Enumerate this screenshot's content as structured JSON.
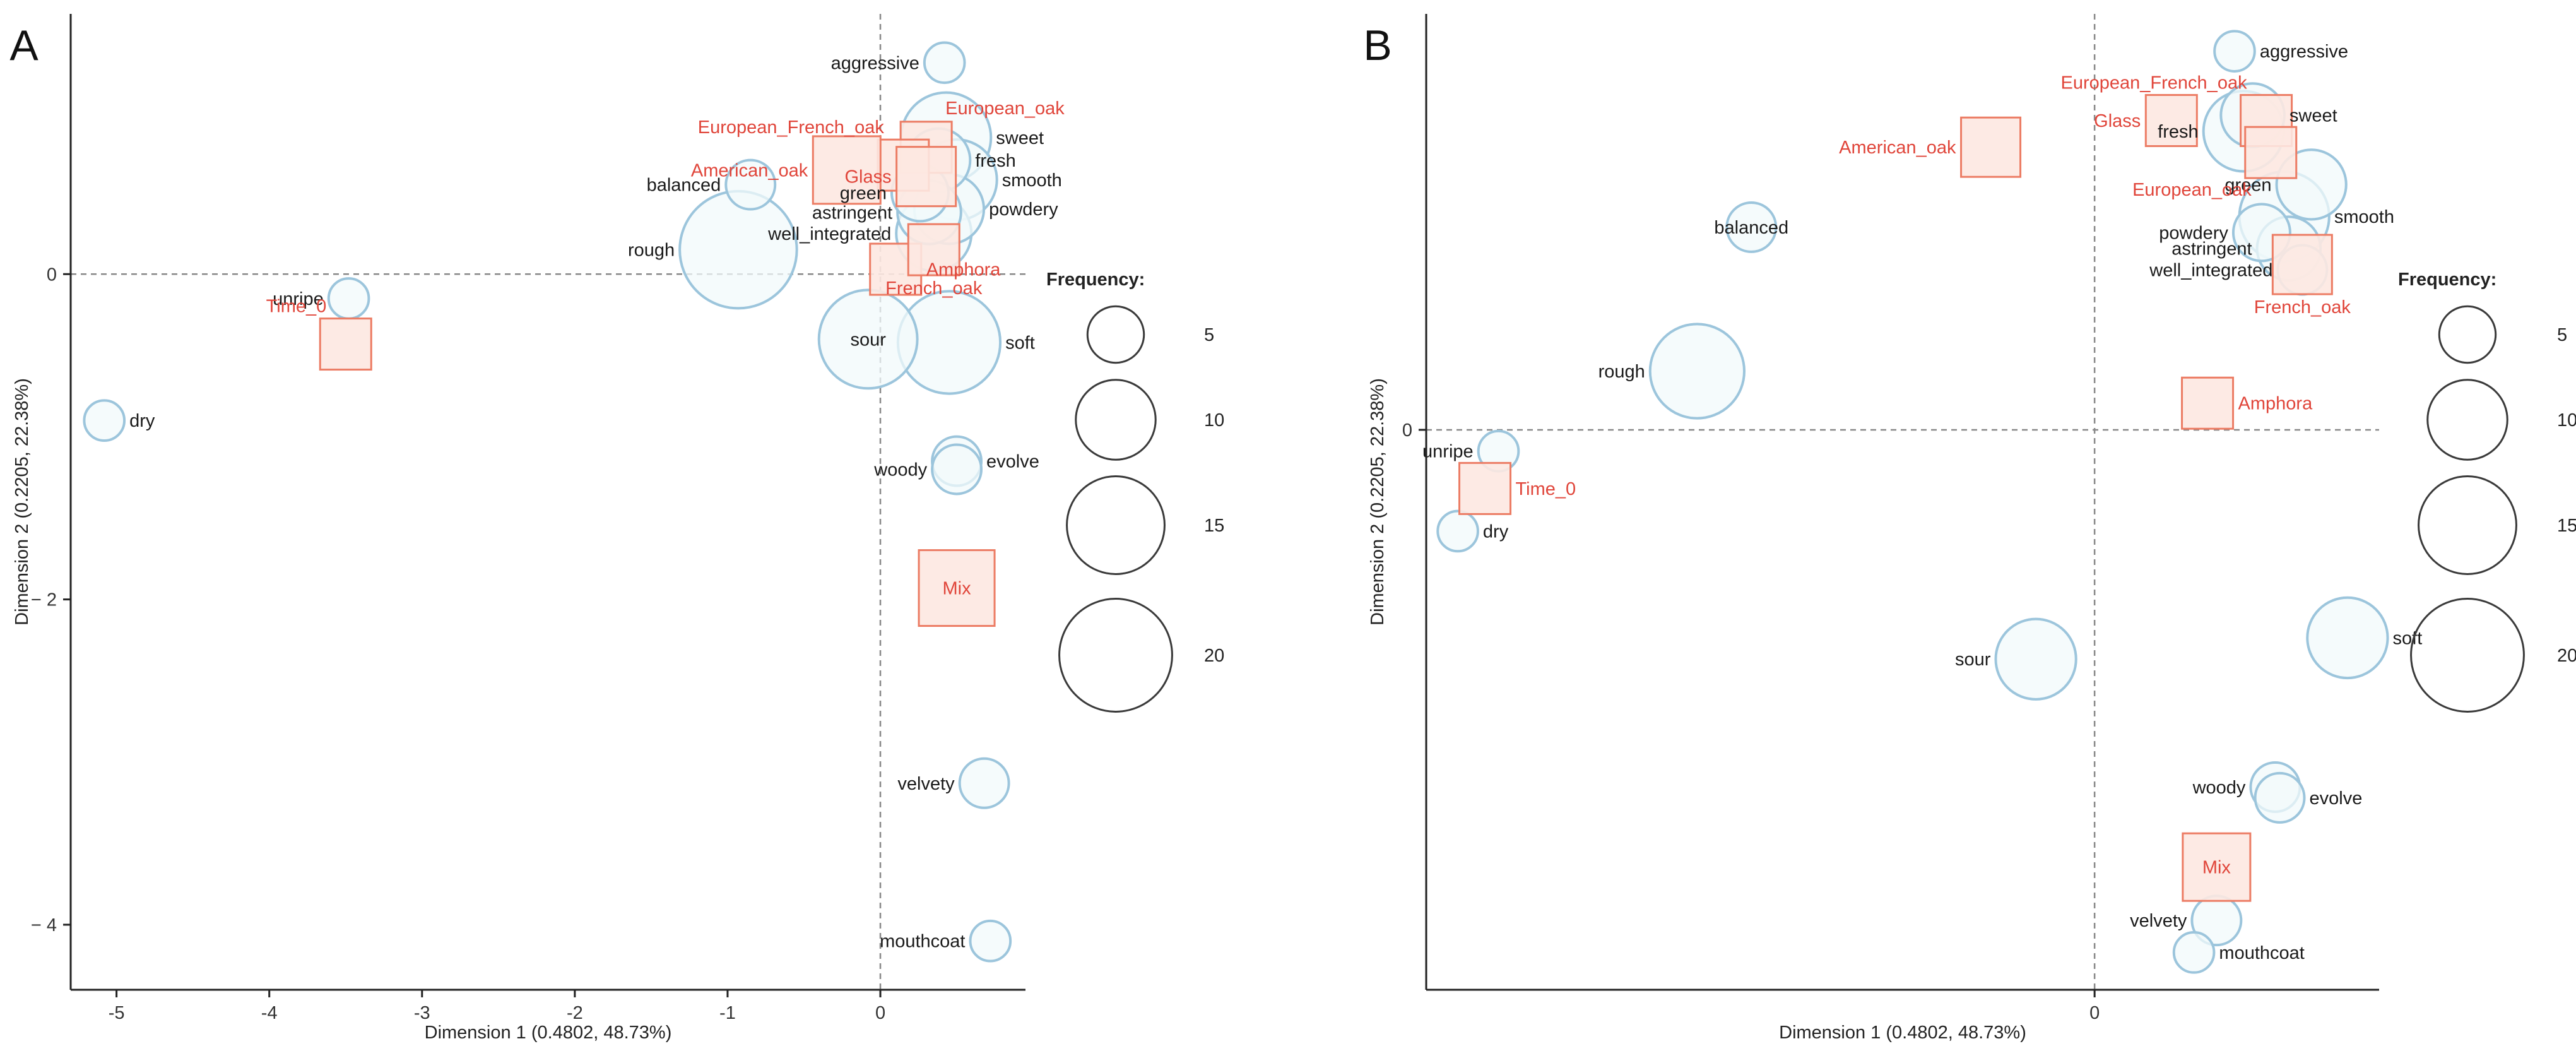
{
  "chart_data": [
    {
      "panel_label": "A",
      "type": "scatter",
      "xlabel": "Dimension 1  (0.4802,  48.73%)",
      "ylabel": "Dimension 2  (0.2205,  22.38%)",
      "xlim": [
        -5.3,
        0.95
      ],
      "ylim": [
        -4.4,
        1.6
      ],
      "x_ticks": [
        -5,
        -4,
        -3,
        -2,
        -1,
        0
      ],
      "x_tick_labels": [
        "-5",
        "-4",
        "-3",
        "-2",
        "-1",
        "0"
      ],
      "y_ticks": [
        0,
        -2,
        -4
      ],
      "y_tick_labels": [
        "0",
        "− 2",
        "− 4"
      ],
      "ref_lines": {
        "x": 0,
        "y": 0
      },
      "attributes": [
        {
          "name": "aggressive",
          "x": 0.42,
          "y": 1.3,
          "freq": 2,
          "label_pos": "left"
        },
        {
          "name": "sweet",
          "x": 0.43,
          "y": 0.84,
          "freq": 10,
          "label_pos": "right"
        },
        {
          "name": "fresh",
          "x": 0.38,
          "y": 0.7,
          "freq": 5,
          "label_pos": "right"
        },
        {
          "name": "smooth",
          "x": 0.5,
          "y": 0.58,
          "freq": 8,
          "label_pos": "right"
        },
        {
          "name": "green",
          "x": 0.26,
          "y": 0.5,
          "freq": 4,
          "label_pos": "left"
        },
        {
          "name": "powdery",
          "x": 0.45,
          "y": 0.4,
          "freq": 6,
          "label_pos": "right"
        },
        {
          "name": "astringent",
          "x": 0.32,
          "y": 0.38,
          "freq": 5,
          "label_pos": "left"
        },
        {
          "name": "well_integrated",
          "x": 0.35,
          "y": 0.25,
          "freq": 7,
          "label_pos": "left"
        },
        {
          "name": "balanced",
          "x": -0.85,
          "y": 0.55,
          "freq": 3,
          "label_pos": "left"
        },
        {
          "name": "rough",
          "x": -0.93,
          "y": 0.15,
          "freq": 17,
          "label_pos": "left"
        },
        {
          "name": "unripe",
          "x": -3.48,
          "y": -0.15,
          "freq": 2,
          "label_pos": "left"
        },
        {
          "name": "sour",
          "x": -0.08,
          "y": -0.4,
          "freq": 12,
          "label_pos": "center"
        },
        {
          "name": "soft",
          "x": 0.45,
          "y": -0.42,
          "freq": 13,
          "label_pos": "right"
        },
        {
          "name": "dry",
          "x": -5.08,
          "y": -0.9,
          "freq": 2,
          "label_pos": "right"
        },
        {
          "name": "evolve",
          "x": 0.5,
          "y": -1.15,
          "freq": 3,
          "label_pos": "right"
        },
        {
          "name": "woody",
          "x": 0.5,
          "y": -1.2,
          "freq": 3,
          "label_pos": "left"
        },
        {
          "name": "velvety",
          "x": 0.68,
          "y": -3.13,
          "freq": 3,
          "label_pos": "left"
        },
        {
          "name": "mouthcoat",
          "x": 0.72,
          "y": -4.1,
          "freq": 2,
          "label_pos": "left"
        }
      ],
      "containers": [
        {
          "name": "European_oak",
          "x": 0.3,
          "y": 0.78,
          "size": 3,
          "label_pos": "upright"
        },
        {
          "name": "European_French_oak",
          "x": 0.15,
          "y": 0.67,
          "size": 3,
          "label_pos": "upleft"
        },
        {
          "name": "American_oak",
          "x": -0.22,
          "y": 0.64,
          "size": 5,
          "label_pos": "left"
        },
        {
          "name": "Glass",
          "x": 0.3,
          "y": 0.6,
          "size": 4,
          "label_pos": "left"
        },
        {
          "name": "Amphora",
          "x": 0.1,
          "y": 0.03,
          "size": 3,
          "label_pos": "right"
        },
        {
          "name": "French_oak",
          "x": 0.35,
          "y": 0.15,
          "size": 3,
          "label_pos": "below"
        },
        {
          "name": "Time_0",
          "x": -3.5,
          "y": -0.43,
          "size": 3,
          "label_pos": "upleft"
        },
        {
          "name": "Mix",
          "x": 0.5,
          "y": -1.93,
          "size": 6,
          "label_pos": "center"
        }
      ],
      "legend": {
        "title": "Frequency:",
        "sizes": [
          5,
          10,
          15,
          20
        ],
        "position": "right"
      }
    },
    {
      "panel_label": "B",
      "type": "scatter",
      "xlabel": "Dimension 1  (0.4802,  48.73%)",
      "ylabel": "Dimension 2  (0.2205,  22.38%)",
      "xlim": [
        -1.48,
        0.63
      ],
      "ylim": [
        -1.05,
        0.78
      ],
      "x_ticks": [
        0
      ],
      "x_tick_labels": [
        "0"
      ],
      "y_ticks": [
        0
      ],
      "y_tick_labels": [
        "0"
      ],
      "ref_lines": {
        "x": 0,
        "y": 0
      },
      "attributes": [
        {
          "name": "aggressive",
          "x": 0.31,
          "y": 0.71,
          "freq": 2,
          "label_pos": "right"
        },
        {
          "name": "sweet",
          "x": 0.35,
          "y": 0.59,
          "freq": 5,
          "label_pos": "right"
        },
        {
          "name": "fresh",
          "x": 0.33,
          "y": 0.56,
          "freq": 8,
          "label_pos": "left"
        },
        {
          "name": "green",
          "x": 0.48,
          "y": 0.46,
          "freq": 6,
          "label_pos": "left"
        },
        {
          "name": "smooth",
          "x": 0.42,
          "y": 0.4,
          "freq": 10,
          "label_pos": "right"
        },
        {
          "name": "powdery",
          "x": 0.37,
          "y": 0.37,
          "freq": 4,
          "label_pos": "left"
        },
        {
          "name": "astringent",
          "x": 0.43,
          "y": 0.34,
          "freq": 5,
          "label_pos": "left"
        },
        {
          "name": "well_integrated",
          "x": 0.46,
          "y": 0.3,
          "freq": 3,
          "label_pos": "left"
        },
        {
          "name": "balanced",
          "x": -0.76,
          "y": 0.38,
          "freq": 3,
          "label_pos": "center"
        },
        {
          "name": "rough",
          "x": -0.88,
          "y": 0.11,
          "freq": 11,
          "label_pos": "left"
        },
        {
          "name": "unripe",
          "x": -1.32,
          "y": -0.04,
          "freq": 2,
          "label_pos": "left"
        },
        {
          "name": "dry",
          "x": -1.41,
          "y": -0.19,
          "freq": 2,
          "label_pos": "right"
        },
        {
          "name": "sour",
          "x": -0.13,
          "y": -0.43,
          "freq": 8,
          "label_pos": "left"
        },
        {
          "name": "soft",
          "x": 0.56,
          "y": -0.39,
          "freq": 8,
          "label_pos": "right"
        },
        {
          "name": "woody",
          "x": 0.4,
          "y": -0.67,
          "freq": 3,
          "label_pos": "left"
        },
        {
          "name": "evolve",
          "x": 0.41,
          "y": -0.69,
          "freq": 3,
          "label_pos": "right"
        },
        {
          "name": "velvety",
          "x": 0.27,
          "y": -0.92,
          "freq": 3,
          "label_pos": "left"
        },
        {
          "name": "mouthcoat",
          "x": 0.22,
          "y": -0.98,
          "freq": 2,
          "label_pos": "right"
        }
      ],
      "containers": [
        {
          "name": "European_French_oak",
          "x": 0.38,
          "y": 0.58,
          "size": 3,
          "label_pos": "upleft"
        },
        {
          "name": "Glass",
          "x": 0.17,
          "y": 0.58,
          "size": 3,
          "label_pos": "left"
        },
        {
          "name": "European_oak",
          "x": 0.39,
          "y": 0.52,
          "size": 3,
          "label_pos": "lowleft"
        },
        {
          "name": "American_oak",
          "x": -0.23,
          "y": 0.53,
          "size": 4,
          "label_pos": "left"
        },
        {
          "name": "French_oak",
          "x": 0.46,
          "y": 0.31,
          "size": 4,
          "label_pos": "below"
        },
        {
          "name": "Amphora",
          "x": 0.25,
          "y": 0.05,
          "size": 3,
          "label_pos": "right"
        },
        {
          "name": "Time_0",
          "x": -1.35,
          "y": -0.11,
          "size": 3,
          "label_pos": "right"
        },
        {
          "name": "Mix",
          "x": 0.27,
          "y": -0.82,
          "size": 5,
          "label_pos": "center"
        }
      ],
      "legend": {
        "title": "Frequency:",
        "sizes": [
          5,
          10,
          15,
          20
        ],
        "position": "right"
      }
    }
  ],
  "colors": {
    "bubble_fill": "#f1f9fb",
    "bubble_stroke": "#9cc5dc",
    "container_fill": "#fde8e1",
    "container_stroke": "#ec7c64",
    "container_text": "#e0453a",
    "attribute_text": "#1a1a1a",
    "axis": "#222222",
    "ref_line": "#888888",
    "legend_circle": "#3a3a3a"
  }
}
